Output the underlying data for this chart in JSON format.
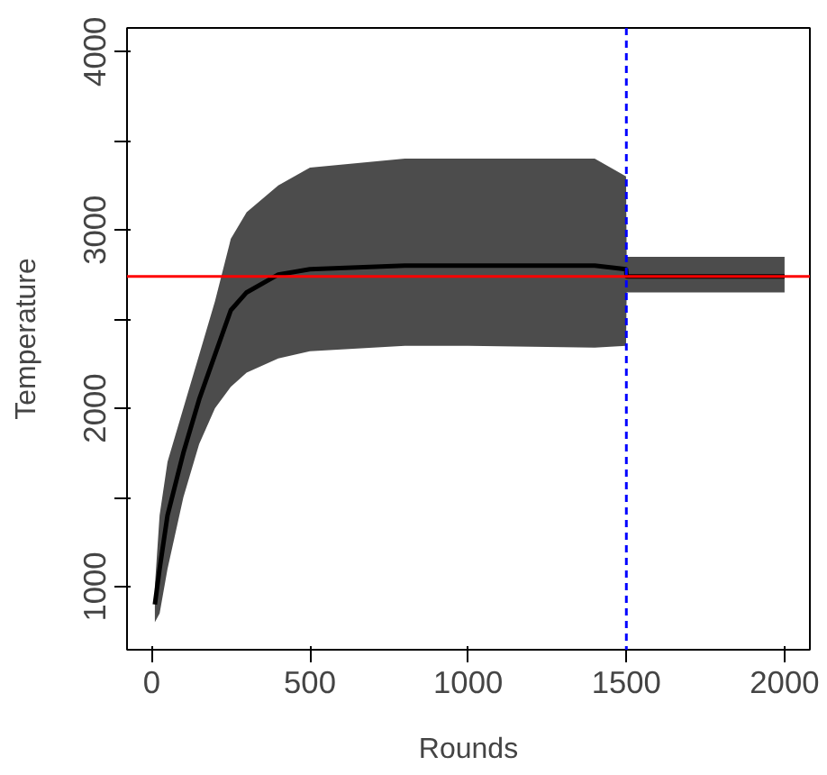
{
  "chart_data": {
    "type": "line",
    "xlabel": "Rounds",
    "ylabel": "Temperature",
    "x": [
      10,
      25,
      50,
      100,
      150,
      200,
      250,
      300,
      400,
      500,
      800,
      1000,
      1400,
      1499,
      1501,
      1600,
      1800,
      2000
    ],
    "series": [
      {
        "color": "#000000",
        "values": [
          900,
          1100,
          1400,
          1750,
          2050,
          2300,
          2550,
          2650,
          2750,
          2780,
          2800,
          2800,
          2800,
          2780,
          2740,
          2740,
          2740,
          2740
        ],
        "lower": [
          800,
          850,
          1100,
          1500,
          1800,
          2000,
          2120,
          2200,
          2280,
          2320,
          2350,
          2350,
          2340,
          2350,
          2650,
          2650,
          2650,
          2650
        ],
        "upper": [
          1000,
          1400,
          1700,
          2000,
          2300,
          2600,
          2950,
          3100,
          3250,
          3350,
          3400,
          3400,
          3400,
          3300,
          2850,
          2850,
          2850,
          2850
        ]
      }
    ],
    "xlim": [
      -78,
      2080
    ],
    "ylim": [
      646,
      4133
    ],
    "xticks": [
      0,
      500,
      1000,
      1500,
      2000
    ],
    "yticks": [
      1000,
      {
        "value": 1500,
        "label": null
      },
      2000,
      {
        "value": 2500,
        "label": null
      },
      3000,
      {
        "value": 3500,
        "label": null
      },
      4000
    ],
    "ref_lines": [
      {
        "axis": "y",
        "value": 2740,
        "color": "#ff0000",
        "line_style": "solid"
      },
      {
        "axis": "x",
        "value": 1500,
        "color": "#0000ff",
        "line_style": "dashed"
      }
    ],
    "grid": false
  }
}
